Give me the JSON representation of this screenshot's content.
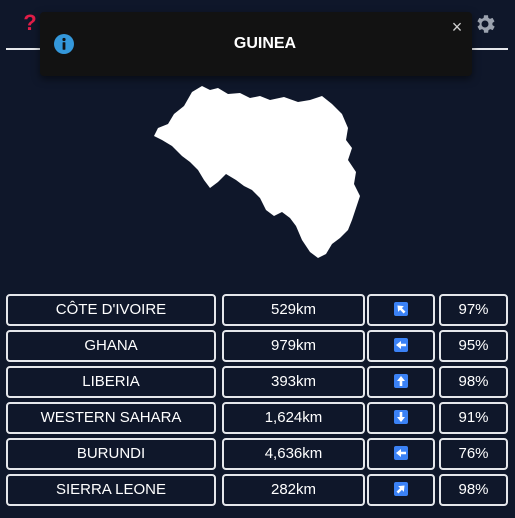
{
  "toast": {
    "title": "GUINEA",
    "info_icon": "info-icon",
    "close_label": "×"
  },
  "header": {
    "help_label": "?",
    "help_icon": "question-icon",
    "settings_icon": "gear-icon"
  },
  "colors": {
    "background": "#0f172a",
    "toast_bg": "#121212",
    "accent_red": "#e11d48",
    "direction_blue": "#3b82f6",
    "border": "#e5e7eb"
  },
  "guesses": [
    {
      "country": "CÔTE D'IVOIRE",
      "distance": "529km",
      "direction": "north-west",
      "proximity": "97%"
    },
    {
      "country": "GHANA",
      "distance": "979km",
      "direction": "west",
      "proximity": "95%"
    },
    {
      "country": "LIBERIA",
      "distance": "393km",
      "direction": "north",
      "proximity": "98%"
    },
    {
      "country": "WESTERN SAHARA",
      "distance": "1,624km",
      "direction": "south",
      "proximity": "91%"
    },
    {
      "country": "BURUNDI",
      "distance": "4,636km",
      "direction": "west",
      "proximity": "76%"
    },
    {
      "country": "SIERRA LEONE",
      "distance": "282km",
      "direction": "north-east",
      "proximity": "98%"
    }
  ]
}
